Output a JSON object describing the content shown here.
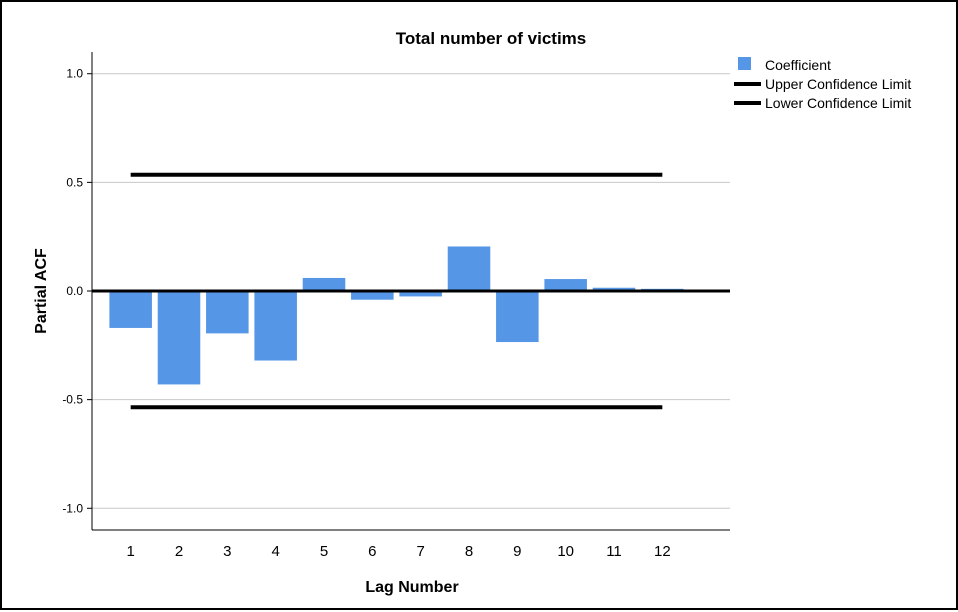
{
  "chart_data": {
    "type": "bar",
    "title": "Total number of victims",
    "xlabel": "Lag Number",
    "ylabel": "Partial ACF",
    "categories": [
      "1",
      "2",
      "3",
      "4",
      "5",
      "6",
      "7",
      "8",
      "9",
      "10",
      "11",
      "12"
    ],
    "series": [
      {
        "name": "Coefficient",
        "values": [
          -0.17,
          -0.43,
          -0.195,
          -0.32,
          0.06,
          -0.04,
          -0.025,
          0.205,
          -0.235,
          0.055,
          0.015,
          0.01
        ],
        "color": "#5596e6"
      }
    ],
    "upper_confidence_limit": 0.535,
    "lower_confidence_limit": -0.535,
    "ylim": [
      -1.1,
      1.1
    ],
    "yticks": [
      1.0,
      0.5,
      0.0,
      -0.5,
      -1.0
    ],
    "ytick_labels": [
      "1.0",
      "0.5",
      "0.0",
      "-0.5",
      "-1.0"
    ],
    "grid": true,
    "legend": {
      "position": "top-right",
      "entries": [
        {
          "label": "Coefficient",
          "kind": "bar",
          "color": "#5596e6"
        },
        {
          "label": "Upper Confidence Limit",
          "kind": "line",
          "color": "#000000"
        },
        {
          "label": "Lower Confidence Limit",
          "kind": "line",
          "color": "#000000"
        }
      ]
    }
  }
}
